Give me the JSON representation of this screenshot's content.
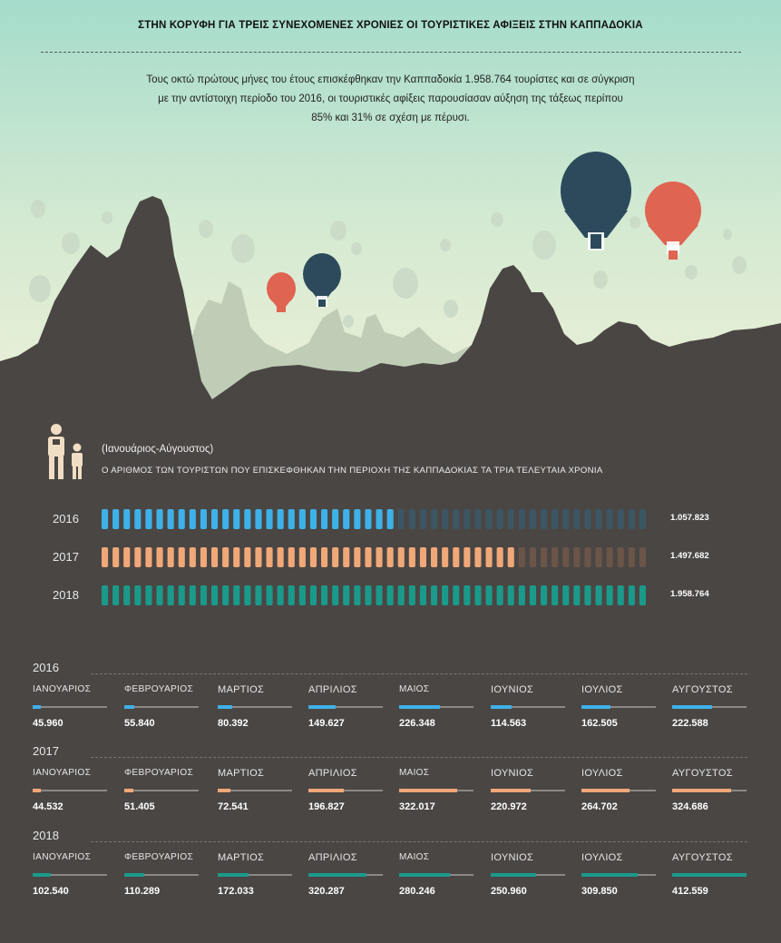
{
  "title": "ΣΤΗΝ ΚΟΡΥΦΗ ΓΙΑ ΤΡΕΙΣ ΣΥΝΕΧΟΜΕΝΕΣ ΧΡΟΝΙΕΣ ΟΙ ΤΟΥΡΙΣΤΙΚΕΣ ΑΦΙΞΕΙΣ ΣΤΗΝ ΚΑΠΠΑΔΟΚΙΑ",
  "intro": {
    "line1": "Τους οκτώ πρώτους μήνες του έτους επισκέφθηκαν την Καππαδοκία 1.958.764 τουρίστες και σε σύγκριση",
    "line2": "με την αντίστοιχη περίοδο του 2016, οι τουριστικές αφίξεις παρουσίασαν αύξηση της τάξεως περίπου",
    "line3": "85% και 31% σε σχέση με πέρυσι."
  },
  "period_label": "(Ιανουάριος-Αύγουστος)",
  "colors": {
    "2016": "#3eb1e8",
    "2017": "#f0a878",
    "2018": "#1a9a8a",
    "sky_top": "#a5dccb",
    "sky_bottom": "#eef0d8",
    "rock": "#4a4644",
    "balloon_navy": "#2c4a5c",
    "balloon_red": "#e06452"
  },
  "chart_data": [
    {
      "type": "bar",
      "title": "Ο ΑΡΙΘΜΟΣ ΤΩΝ ΤΟΥΡΙΣΤΩΝ ΠΟΥ ΕΠΙΣΚΕΦΘΗΚΑΝ ΤΗΝ ΠΕΡΙΟΧΗ ΤΗΣ ΚΑΠΠΑΔΟΚΙΑΣ ΤΑ ΤΡΙΑ ΤΕΛΕΥΤΑΙΑ ΧΡΟΝΙΑ",
      "categories": [
        "2016",
        "2017",
        "2018"
      ],
      "values": [
        1057823,
        1497682,
        1958764
      ],
      "value_labels": [
        "1.057.823",
        "1.497.682",
        "1.958.764"
      ],
      "ylim": [
        0,
        1958764
      ]
    },
    {
      "type": "bar",
      "months": [
        "ΙΑΝΟΥΑΡΙΟΣ",
        "ΦΕΒΡΟΥΑΡΙΟΣ",
        "ΜΑΡΤΙΟΣ",
        "ΑΠΡΙΛΙΟΣ",
        "ΜΑΙΟΣ",
        "ΙΟΥΝΙΟΣ",
        "ΙΟΥΛΙΟΣ",
        "ΑΥΓΟΥΣΤΟΣ"
      ],
      "ylim": [
        0,
        412559
      ],
      "series": [
        {
          "name": "2016",
          "values": [
            45960,
            55840,
            80392,
            149627,
            226348,
            114563,
            162505,
            222588
          ],
          "labels": [
            "45.960",
            "55.840",
            "80.392",
            "149.627",
            "226.348",
            "114.563",
            "162.505",
            "222.588"
          ]
        },
        {
          "name": "2017",
          "values": [
            44532,
            51405,
            72541,
            196827,
            322017,
            220972,
            264702,
            324686
          ],
          "labels": [
            "44.532",
            "51.405",
            "72.541",
            "196.827",
            "322.017",
            "220.972",
            "264.702",
            "324.686"
          ]
        },
        {
          "name": "2018",
          "values": [
            102540,
            110289,
            172033,
            320287,
            280246,
            250960,
            309850,
            412559
          ],
          "labels": [
            "102.540",
            "110.289",
            "172.033",
            "320.287",
            "280.246",
            "250.960",
            "309.850",
            "412.559"
          ]
        }
      ]
    }
  ]
}
